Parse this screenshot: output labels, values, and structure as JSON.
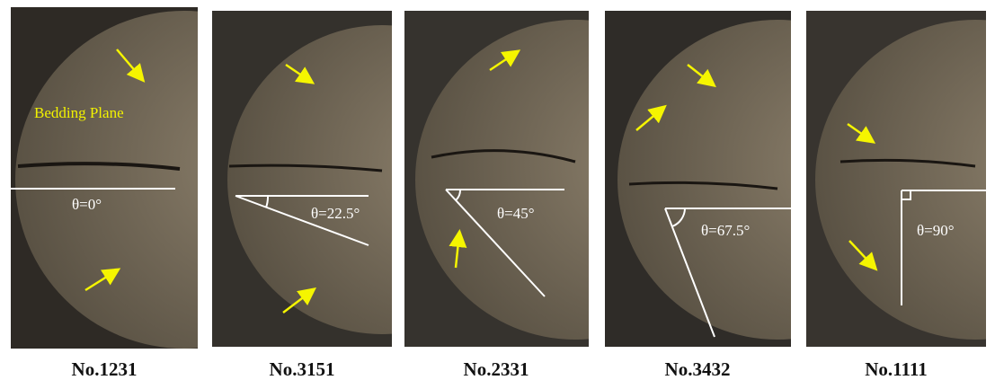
{
  "panels": [
    {
      "label": "No.1231",
      "angle": "θ=0°",
      "annotation": "Bedding Plane"
    },
    {
      "label": "No.3151",
      "angle": "θ=22.5°"
    },
    {
      "label": "No.2331",
      "angle": "θ=45°"
    },
    {
      "label": "No.3432",
      "angle": "θ=67.5°"
    },
    {
      "label": "No.1111",
      "angle": "θ=90°"
    }
  ]
}
